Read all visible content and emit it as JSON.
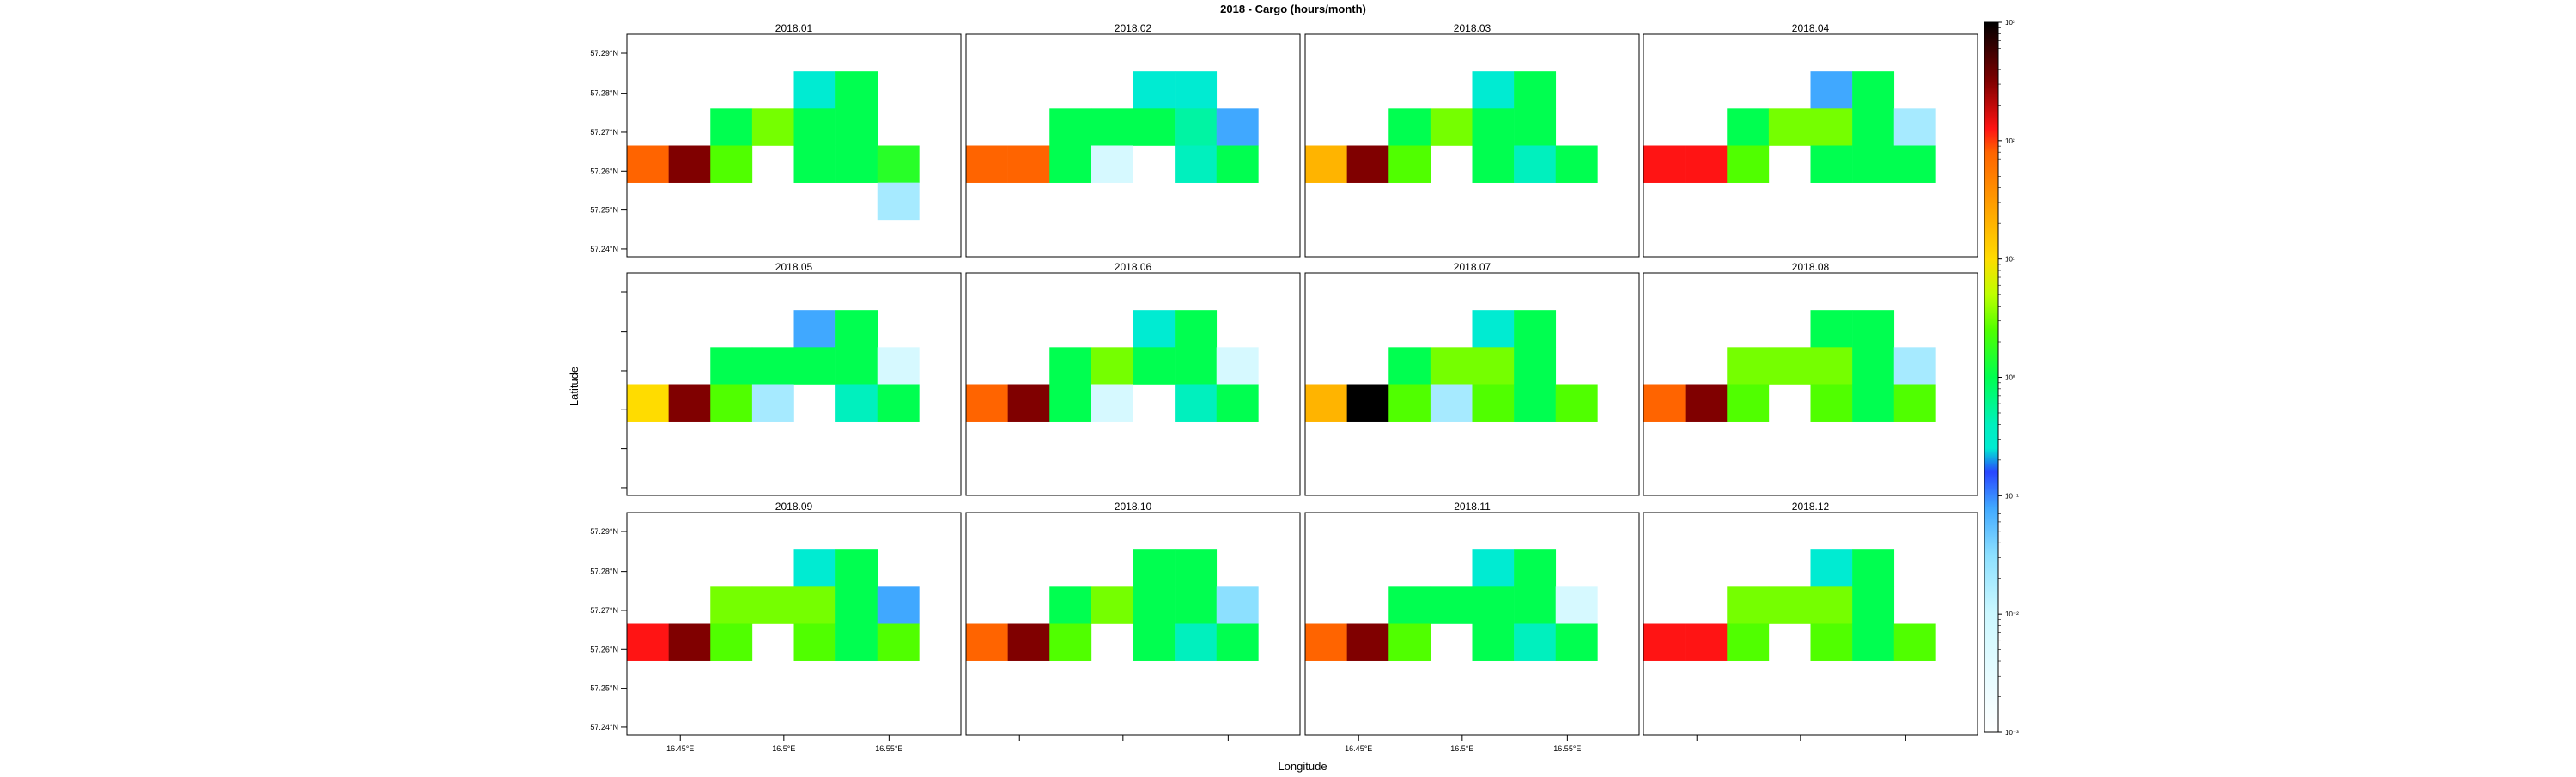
{
  "chart_data": {
    "type": "heatmap",
    "title": "2018 - Cargo (hours/month)",
    "xlabel": "Longitude",
    "ylabel": "Latitude",
    "x_ticks": [
      "16.45°E",
      "16.5°E",
      "16.55°E"
    ],
    "y_ticks": [
      "57.29°N",
      "57.28°N",
      "57.27°N",
      "57.26°N",
      "57.25°N",
      "57.24°N"
    ],
    "colorbar": {
      "scale": "log10",
      "tick_exponents": [
        -3,
        -2,
        -1,
        0,
        1,
        2,
        3
      ],
      "tick_labels": [
        "10⁻³",
        "10⁻²",
        "10⁻¹",
        "10⁰",
        "10¹",
        "10²",
        "10³"
      ]
    },
    "grid_cells": {
      "columns": 8,
      "rows": 6,
      "note": "col 0 = left edge of plot area, row 0 = top edge; cells are 1/8 width and 1/6 height... cells listed as [col,row,log10 value]"
    },
    "panels": [
      {
        "label": "2018.01",
        "cells": [
          [
            4,
            1,
            -0.6
          ],
          [
            5,
            1,
            0.0
          ],
          [
            2,
            2,
            0.0
          ],
          [
            3,
            2,
            0.5
          ],
          [
            4,
            2,
            0.0
          ],
          [
            5,
            2,
            0.0
          ],
          [
            0,
            3,
            1.9
          ],
          [
            1,
            3,
            2.5
          ],
          [
            2,
            3,
            0.4
          ],
          [
            4,
            3,
            0.0
          ],
          [
            5,
            3,
            0.0
          ],
          [
            6,
            3,
            0.2
          ],
          [
            6,
            4,
            -1.7
          ]
        ]
      },
      {
        "label": "2018.02",
        "cells": [
          [
            4,
            1,
            -0.6
          ],
          [
            5,
            1,
            -0.6
          ],
          [
            2,
            2,
            0.0
          ],
          [
            3,
            2,
            0.0
          ],
          [
            4,
            2,
            0.0
          ],
          [
            5,
            2,
            -0.3
          ],
          [
            6,
            2,
            -1.1
          ],
          [
            0,
            3,
            1.9
          ],
          [
            1,
            3,
            1.9
          ],
          [
            2,
            3,
            0.0
          ],
          [
            3,
            3,
            -2.2
          ],
          [
            5,
            3,
            -0.4
          ],
          [
            6,
            3,
            0.0
          ]
        ]
      },
      {
        "label": "2018.03",
        "cells": [
          [
            4,
            1,
            -0.6
          ],
          [
            5,
            1,
            0.0
          ],
          [
            2,
            2,
            0.0
          ],
          [
            3,
            2,
            0.5
          ],
          [
            4,
            2,
            0.0
          ],
          [
            5,
            2,
            0.0
          ],
          [
            0,
            3,
            1.3
          ],
          [
            1,
            3,
            2.5
          ],
          [
            2,
            3,
            0.4
          ],
          [
            4,
            3,
            0.0
          ],
          [
            5,
            3,
            -0.4
          ],
          [
            6,
            3,
            0.0
          ]
        ]
      },
      {
        "label": "2018.04",
        "cells": [
          [
            4,
            1,
            -1.1
          ],
          [
            5,
            1,
            0.0
          ],
          [
            2,
            2,
            0.0
          ],
          [
            3,
            2,
            0.5
          ],
          [
            4,
            2,
            0.5
          ],
          [
            5,
            2,
            0.0
          ],
          [
            6,
            2,
            -1.7
          ],
          [
            0,
            3,
            2.1
          ],
          [
            1,
            3,
            2.1
          ],
          [
            2,
            3,
            0.4
          ],
          [
            4,
            3,
            0.0
          ],
          [
            5,
            3,
            0.0
          ],
          [
            6,
            3,
            0.0
          ]
        ]
      },
      {
        "label": "2018.05",
        "cells": [
          [
            4,
            1,
            -1.1
          ],
          [
            5,
            1,
            0.0
          ],
          [
            2,
            2,
            0.0
          ],
          [
            3,
            2,
            0.0
          ],
          [
            4,
            2,
            0.0
          ],
          [
            5,
            2,
            0.0
          ],
          [
            6,
            2,
            -2.2
          ],
          [
            0,
            3,
            1.0
          ],
          [
            1,
            3,
            2.5
          ],
          [
            2,
            3,
            0.4
          ],
          [
            3,
            3,
            -1.7
          ],
          [
            5,
            3,
            -0.4
          ],
          [
            6,
            3,
            0.0
          ]
        ]
      },
      {
        "label": "2018.06",
        "cells": [
          [
            4,
            1,
            -0.6
          ],
          [
            5,
            1,
            0.0
          ],
          [
            2,
            2,
            0.0
          ],
          [
            3,
            2,
            0.5
          ],
          [
            4,
            2,
            0.0
          ],
          [
            5,
            2,
            0.0
          ],
          [
            6,
            2,
            -2.2
          ],
          [
            0,
            3,
            1.9
          ],
          [
            1,
            3,
            2.5
          ],
          [
            2,
            3,
            0.0
          ],
          [
            3,
            3,
            -2.2
          ],
          [
            5,
            3,
            -0.4
          ],
          [
            6,
            3,
            0.0
          ]
        ]
      },
      {
        "label": "2018.07",
        "cells": [
          [
            4,
            1,
            -0.6
          ],
          [
            5,
            1,
            0.0
          ],
          [
            2,
            2,
            0.0
          ],
          [
            3,
            2,
            0.5
          ],
          [
            4,
            2,
            0.5
          ],
          [
            5,
            2,
            0.0
          ],
          [
            0,
            3,
            1.3
          ],
          [
            1,
            3,
            3.0
          ],
          [
            2,
            3,
            0.4
          ],
          [
            3,
            3,
            -1.7
          ],
          [
            4,
            3,
            0.4
          ],
          [
            5,
            3,
            0.0
          ],
          [
            6,
            3,
            0.4
          ]
        ]
      },
      {
        "label": "2018.08",
        "cells": [
          [
            4,
            1,
            0.0
          ],
          [
            5,
            1,
            0.0
          ],
          [
            2,
            2,
            0.5
          ],
          [
            3,
            2,
            0.5
          ],
          [
            4,
            2,
            0.5
          ],
          [
            5,
            2,
            0.0
          ],
          [
            6,
            2,
            -1.7
          ],
          [
            0,
            3,
            1.9
          ],
          [
            1,
            3,
            2.5
          ],
          [
            2,
            3,
            0.4
          ],
          [
            4,
            3,
            0.4
          ],
          [
            5,
            3,
            0.0
          ],
          [
            6,
            3,
            0.4
          ]
        ]
      },
      {
        "label": "2018.09",
        "cells": [
          [
            4,
            1,
            -0.6
          ],
          [
            5,
            1,
            0.0
          ],
          [
            2,
            2,
            0.5
          ],
          [
            3,
            2,
            0.5
          ],
          [
            4,
            2,
            0.5
          ],
          [
            5,
            2,
            0.0
          ],
          [
            6,
            2,
            -1.1
          ],
          [
            0,
            3,
            2.1
          ],
          [
            1,
            3,
            2.5
          ],
          [
            2,
            3,
            0.4
          ],
          [
            4,
            3,
            0.4
          ],
          [
            5,
            3,
            0.0
          ],
          [
            6,
            3,
            0.4
          ]
        ]
      },
      {
        "label": "2018.10",
        "cells": [
          [
            4,
            1,
            0.0
          ],
          [
            5,
            1,
            0.0
          ],
          [
            2,
            2,
            0.0
          ],
          [
            3,
            2,
            0.5
          ],
          [
            4,
            2,
            0.0
          ],
          [
            5,
            2,
            0.0
          ],
          [
            6,
            2,
            -1.5
          ],
          [
            0,
            3,
            1.9
          ],
          [
            1,
            3,
            2.5
          ],
          [
            2,
            3,
            0.4
          ],
          [
            4,
            3,
            0.0
          ],
          [
            5,
            3,
            -0.4
          ],
          [
            6,
            3,
            0.0
          ]
        ]
      },
      {
        "label": "2018.11",
        "cells": [
          [
            4,
            1,
            -0.6
          ],
          [
            5,
            1,
            0.0
          ],
          [
            2,
            2,
            0.0
          ],
          [
            3,
            2,
            0.0
          ],
          [
            4,
            2,
            0.0
          ],
          [
            5,
            2,
            0.0
          ],
          [
            6,
            2,
            -2.2
          ],
          [
            0,
            3,
            1.9
          ],
          [
            1,
            3,
            2.5
          ],
          [
            2,
            3,
            0.4
          ],
          [
            4,
            3,
            0.0
          ],
          [
            5,
            3,
            -0.4
          ],
          [
            6,
            3,
            0.0
          ]
        ]
      },
      {
        "label": "2018.12",
        "cells": [
          [
            4,
            1,
            -0.6
          ],
          [
            5,
            1,
            0.0
          ],
          [
            2,
            2,
            0.5
          ],
          [
            3,
            2,
            0.5
          ],
          [
            4,
            2,
            0.5
          ],
          [
            5,
            2,
            0.0
          ],
          [
            0,
            3,
            2.1
          ],
          [
            1,
            3,
            2.1
          ],
          [
            2,
            3,
            0.4
          ],
          [
            4,
            3,
            0.4
          ],
          [
            5,
            3,
            0.0
          ],
          [
            6,
            3,
            0.4
          ]
        ]
      }
    ]
  }
}
